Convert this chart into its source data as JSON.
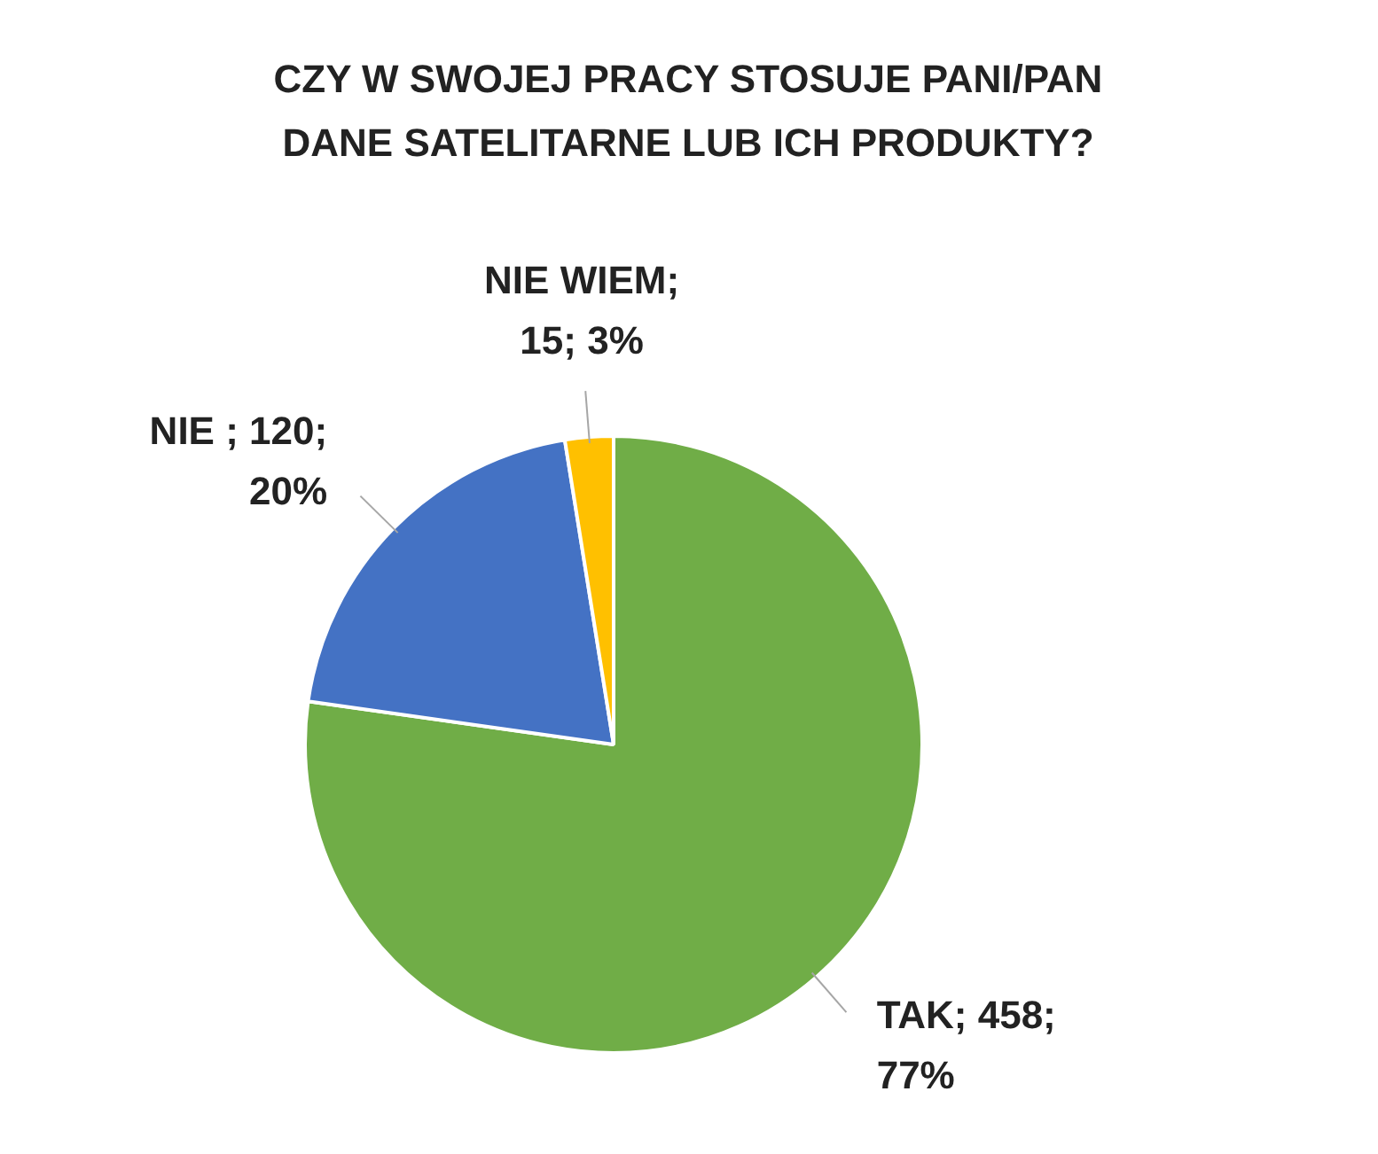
{
  "chart_data": {
    "type": "pie",
    "title": "CZY W SWOJEJ PRACY STOSUJE PANI/PAN\nDANE SATELITARNE LUB ICH PRODUKTY?",
    "categories": [
      "TAK",
      "NIE ",
      "NIE WIEM"
    ],
    "values": [
      458,
      120,
      15
    ],
    "colors": [
      "#70ad47",
      "#4472c4",
      "#ffc000"
    ],
    "value_labels": [
      "; 458; 77%",
      "; 120; 20%",
      "; 15; 3%"
    ],
    "legend": false
  }
}
